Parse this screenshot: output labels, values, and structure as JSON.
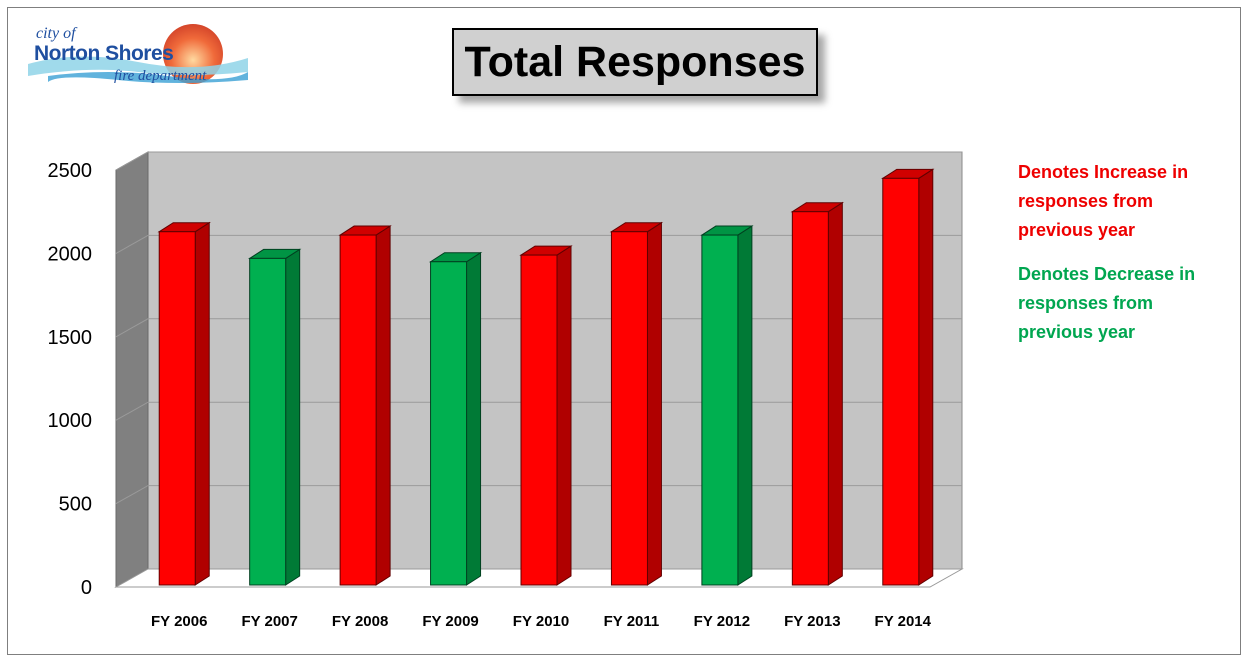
{
  "logo": {
    "line1": "city of",
    "line2": "Norton Shores",
    "line3": "fire department"
  },
  "title": "Total Responses",
  "legend": {
    "increase_text": "Denotes Increase in responses from previous year",
    "decrease_text": "Denotes Decrease in responses from previous year",
    "increase_color": "#ff0000",
    "decrease_color": "#00b050"
  },
  "chart_data": {
    "type": "bar",
    "title": "Total Responses",
    "categories": [
      "FY 2006",
      "FY 2007",
      "FY 2008",
      "FY 2009",
      "FY 2010",
      "FY 2011",
      "FY 2012",
      "FY 2013",
      "FY 2014"
    ],
    "values": [
      2130,
      1970,
      2110,
      1950,
      1990,
      2130,
      2110,
      2250,
      2450
    ],
    "trend": [
      "increase",
      "decrease",
      "increase",
      "decrease",
      "increase",
      "increase",
      "decrease",
      "increase",
      "increase"
    ],
    "yticks": [
      0,
      500,
      1000,
      1500,
      2000,
      2500
    ],
    "ylim": [
      0,
      2500
    ],
    "grid": true,
    "legend_position": "right"
  }
}
